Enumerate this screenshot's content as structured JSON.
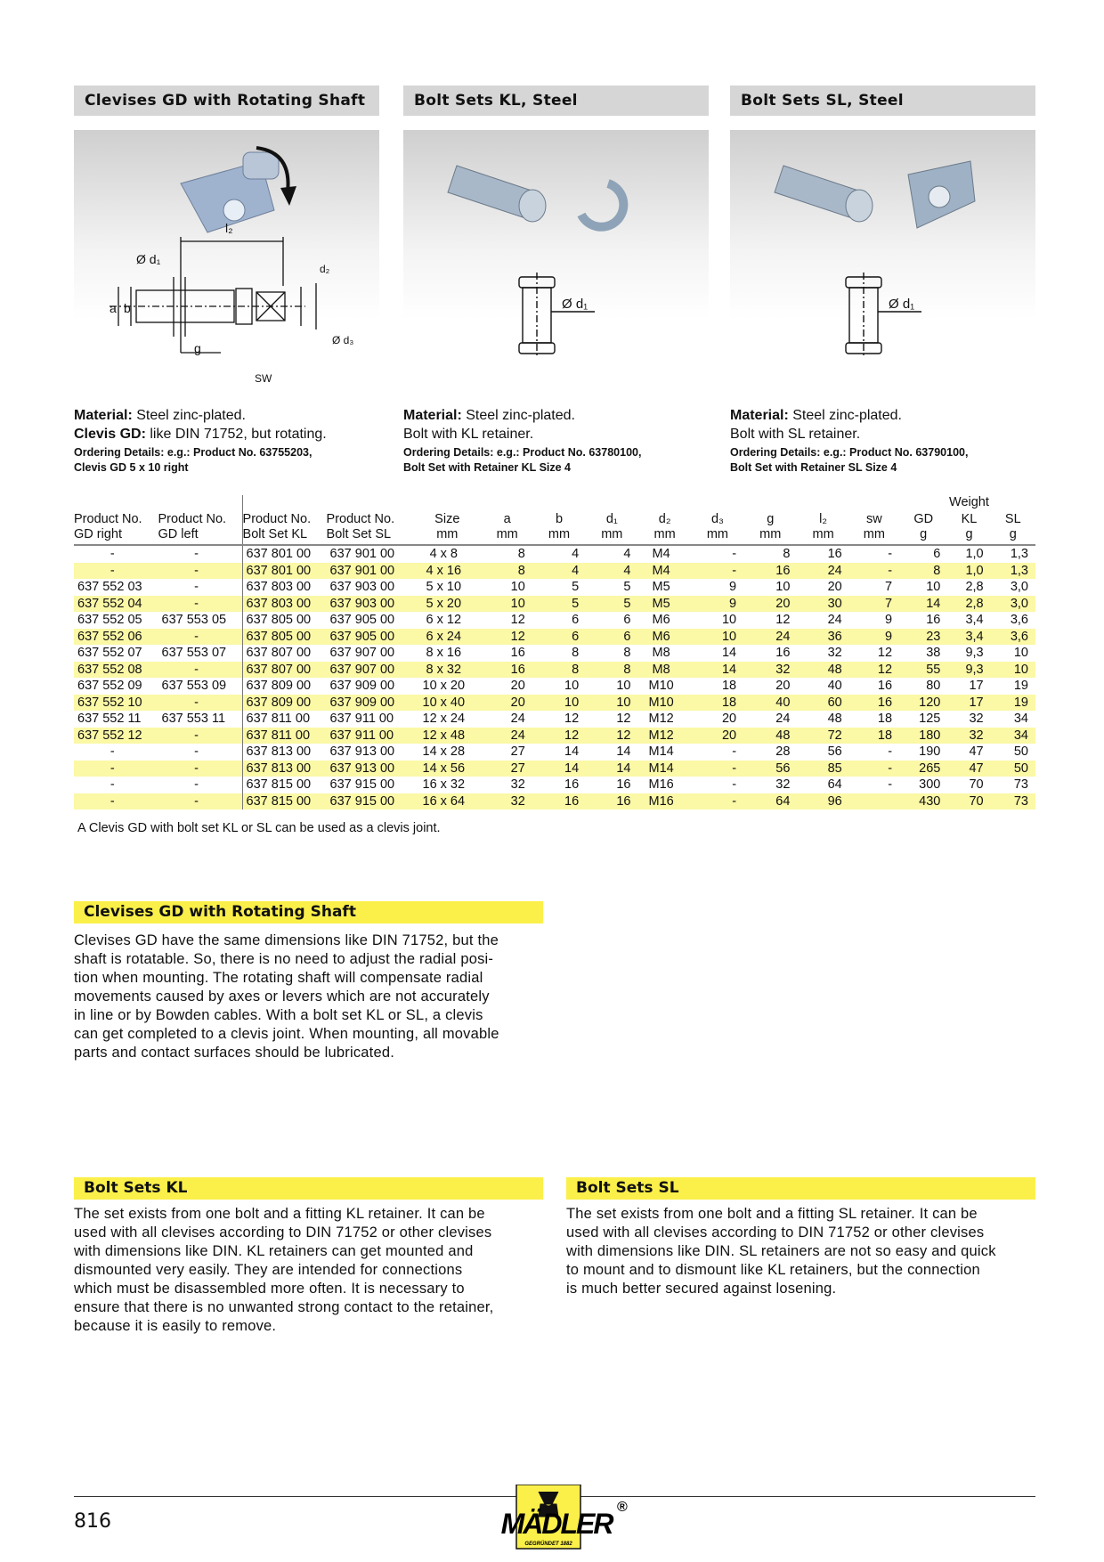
{
  "columns": [
    {
      "header": "Clevises GD with Rotating Shaft",
      "material_label": "Material:",
      "material": " Steel zinc-plated.",
      "line2_label": "Clevis GD:",
      "line2": " like DIN 71752, but rotating.",
      "ordering1": "Ordering Details: e.g.: Product No. 63755203,",
      "ordering2": "Clevis GD 5 x 10 right",
      "diagram_labels": {
        "d1": "Ø d₁",
        "l2": "l₂",
        "a": "a",
        "b": "b",
        "g": "g",
        "sw": "SW",
        "d2": "d₂",
        "d3": "Ø d₃"
      }
    },
    {
      "header": "Bolt Sets KL, Steel",
      "material_label": "Material:",
      "material": " Steel zinc-plated.",
      "line2_label": "",
      "line2": "Bolt with KL retainer.",
      "ordering1": "Ordering Details: e.g.: Product No. 63780100,",
      "ordering2": "Bolt Set with Retainer KL Size 4",
      "diagram_labels": {
        "d1": "Ø d₁"
      }
    },
    {
      "header": "Bolt Sets SL, Steel",
      "material_label": "Material:",
      "material": " Steel zinc-plated.",
      "line2_label": "",
      "line2": "Bolt with SL retainer.",
      "ordering1": "Ordering Details: e.g.: Product No. 63790100,",
      "ordering2": "Bolt Set with Retainer SL Size 4",
      "diagram_labels": {
        "d1": "Ø d₁"
      }
    }
  ],
  "table": {
    "weight_group": "Weight",
    "headers": [
      [
        "Product No.",
        "GD right"
      ],
      [
        "Product No.",
        "GD left"
      ],
      [
        "Product No.",
        "Bolt Set KL"
      ],
      [
        "Product No.",
        "Bolt Set SL"
      ],
      [
        "Size",
        "mm"
      ],
      [
        "a",
        "mm"
      ],
      [
        "b",
        "mm"
      ],
      [
        "d₁",
        "mm"
      ],
      [
        "d₂",
        "mm"
      ],
      [
        "d₃",
        "mm"
      ],
      [
        "g",
        "mm"
      ],
      [
        "l₂",
        "mm"
      ],
      [
        "sw",
        "mm"
      ],
      [
        "GD",
        "g"
      ],
      [
        "KL",
        "g"
      ],
      [
        "SL",
        "g"
      ]
    ],
    "rows": [
      [
        "-",
        "-",
        "637 801 00",
        "637 901 00",
        "4 x 8",
        "8",
        "4",
        "4",
        "M4",
        "-",
        "8",
        "16",
        "-",
        "6",
        "1,0",
        "1,3"
      ],
      [
        "-",
        "-",
        "637 801 00",
        "637 901 00",
        "4 x 16",
        "8",
        "4",
        "4",
        "M4",
        "-",
        "16",
        "24",
        "-",
        "8",
        "1,0",
        "1,3"
      ],
      [
        "637 552 03",
        "-",
        "637 803 00",
        "637 903 00",
        "5 x 10",
        "10",
        "5",
        "5",
        "M5",
        "9",
        "10",
        "20",
        "7",
        "10",
        "2,8",
        "3,0"
      ],
      [
        "637 552 04",
        "-",
        "637 803 00",
        "637 903 00",
        "5 x 20",
        "10",
        "5",
        "5",
        "M5",
        "9",
        "20",
        "30",
        "7",
        "14",
        "2,8",
        "3,0"
      ],
      [
        "637 552 05",
        "637 553 05",
        "637 805 00",
        "637 905 00",
        "6 x 12",
        "12",
        "6",
        "6",
        "M6",
        "10",
        "12",
        "24",
        "9",
        "16",
        "3,4",
        "3,6"
      ],
      [
        "637 552 06",
        "-",
        "637 805 00",
        "637 905 00",
        "6 x 24",
        "12",
        "6",
        "6",
        "M6",
        "10",
        "24",
        "36",
        "9",
        "23",
        "3,4",
        "3,6"
      ],
      [
        "637 552 07",
        "637 553 07",
        "637 807 00",
        "637 907 00",
        "8 x 16",
        "16",
        "8",
        "8",
        "M8",
        "14",
        "16",
        "32",
        "12",
        "38",
        "9,3",
        "10"
      ],
      [
        "637 552 08",
        "-",
        "637 807 00",
        "637 907 00",
        "8 x 32",
        "16",
        "8",
        "8",
        "M8",
        "14",
        "32",
        "48",
        "12",
        "55",
        "9,3",
        "10"
      ],
      [
        "637 552 09",
        "637 553 09",
        "637 809 00",
        "637 909 00",
        "10 x 20",
        "20",
        "10",
        "10",
        "M10",
        "18",
        "20",
        "40",
        "16",
        "80",
        "17",
        "19"
      ],
      [
        "637 552 10",
        "-",
        "637 809 00",
        "637 909 00",
        "10 x 40",
        "20",
        "10",
        "10",
        "M10",
        "18",
        "40",
        "60",
        "16",
        "120",
        "17",
        "19"
      ],
      [
        "637 552 11",
        "637 553 11",
        "637 811 00",
        "637 911 00",
        "12 x 24",
        "24",
        "12",
        "12",
        "M12",
        "20",
        "24",
        "48",
        "18",
        "125",
        "32",
        "34"
      ],
      [
        "637 552 12",
        "-",
        "637 811 00",
        "637 911 00",
        "12 x 48",
        "24",
        "12",
        "12",
        "M12",
        "20",
        "48",
        "72",
        "18",
        "180",
        "32",
        "34"
      ],
      [
        "-",
        "-",
        "637 813 00",
        "637 913 00",
        "14 x 28",
        "27",
        "14",
        "14",
        "M14",
        "-",
        "28",
        "56",
        "-",
        "190",
        "47",
        "50"
      ],
      [
        "-",
        "-",
        "637 813 00",
        "637 913 00",
        "14 x 56",
        "27",
        "14",
        "14",
        "M14",
        "-",
        "56",
        "85",
        "-",
        "265",
        "47",
        "50"
      ],
      [
        "-",
        "-",
        "637 815 00",
        "637 915 00",
        "16 x 32",
        "32",
        "16",
        "16",
        "M16",
        "-",
        "32",
        "64",
        "-",
        "300",
        "70",
        "73"
      ],
      [
        "-",
        "-",
        "637 815 00",
        "637 915 00",
        "16 x 64",
        "32",
        "16",
        "16",
        "M16",
        "-",
        "64",
        "96",
        "",
        "430",
        "70",
        "73"
      ]
    ],
    "highlight_color": "#fbf8a6",
    "note": "A Clevis GD with bolt set KL or SL can be used as a clevis joint."
  },
  "sections": [
    {
      "title": "Clevises GD with Rotating Shaft",
      "lines": [
        "Clevises GD have the same dimensions like DIN 71752, but the",
        "shaft is rotatable. So, there is no need to adjust the radial posi-",
        "tion when mounting. The rotating shaft will compensate radial",
        "movements caused by axes or levers which are not accurately",
        "in line or by Bowden cables. With a bolt set KL or SL, a clevis",
        "can get completed to a clevis joint. When mounting, all movable",
        "parts and contact surfaces should be lubricated."
      ]
    },
    {
      "title": "Bolt Sets KL",
      "lines": [
        "The set exists from one bolt and a fitting KL retainer. It can be",
        "used with all clevises according to DIN 71752 or other clevises",
        "with dimensions like DIN. KL retainers can get mounted and",
        "dismounted very easily. They are intended for connections",
        "which must be disassembled more often. It is necessary to",
        "ensure that there is no unwanted strong contact to the retainer,",
        "because it is easily to remove."
      ]
    },
    {
      "title": "Bolt Sets SL",
      "lines": [
        "The set exists from one bolt and a fitting SL retainer. It can be",
        "used with all clevises according to DIN 71752 or other clevises",
        "with dimensions like DIN. SL retainers are not so easy and quick",
        "to mount and to dismount like KL retainers, but the connection",
        "is much better secured against losening."
      ]
    }
  ],
  "footer": {
    "page_number": "816",
    "logo_text": "MÄDLER",
    "logo_sub": "GEGRÜNDET 1882",
    "logo_mark": "®",
    "accent": "#fbf04a"
  }
}
